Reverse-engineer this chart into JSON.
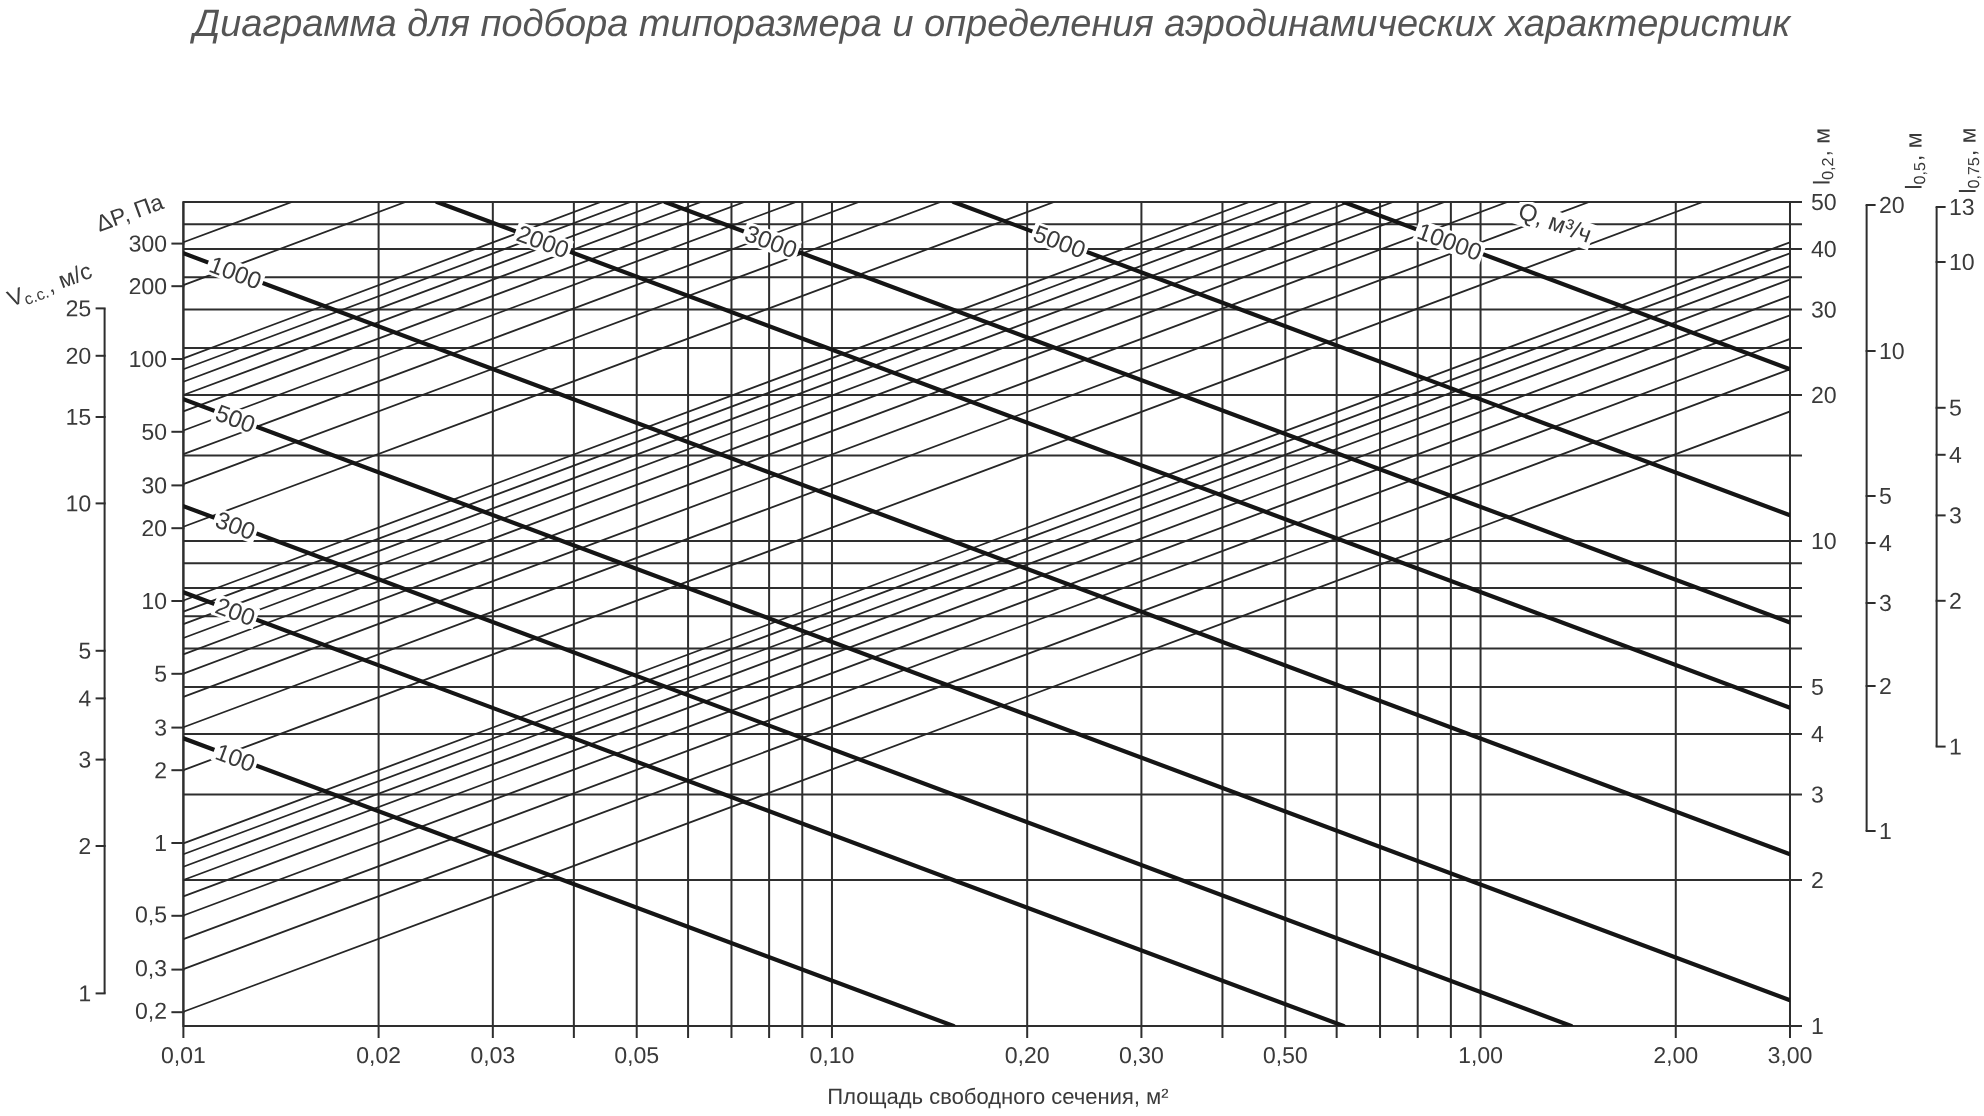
{
  "chart_data": {
    "type": "line",
    "title": "Диаграмма для подбора типоразмера и определения аэродинамических характеристик",
    "xlabel": "Площадь свободного сечения, м²",
    "ylabel": "l$_{0,2}$, м",
    "annotations": [
      {
        "text": "Q, м³/ч",
        "x": 1.3,
        "y": 45
      },
      "l$_{0,5}$, м",
      "20",
      "10",
      "5",
      "4",
      "3",
      "2",
      "1",
      "l$_{0,75}$, м",
      "13",
      "10",
      "5",
      "4",
      "3",
      "2",
      "1",
      "ΔP, Па",
      "300",
      "200",
      "100",
      "50",
      "30",
      "20",
      "10",
      "5",
      "3",
      "2",
      "1",
      "0,5",
      "0,3",
      "0,2",
      "V$_{с.с.}$, м/с",
      "25",
      "20",
      "15",
      "10",
      "5",
      "4",
      "3",
      "2",
      "1"
    ],
    "log": "xy",
    "grid": true,
    "xlim": [
      0.01,
      3
    ],
    "ylim": [
      1,
      50
    ],
    "xticks": [
      {
        "value": 0.01,
        "label": "0,01"
      },
      {
        "value": 0.02,
        "label": "0,02"
      },
      {
        "value": 0.03,
        "label": "0,03"
      },
      {
        "value": 0.04,
        "label": null
      },
      {
        "value": 0.05,
        "label": "0,05"
      },
      {
        "value": 0.06,
        "label": null
      },
      {
        "value": 0.07,
        "label": null
      },
      {
        "value": 0.08,
        "label": null
      },
      {
        "value": 0.09,
        "label": null
      },
      {
        "value": 0.1,
        "label": "0,10"
      },
      {
        "value": 0.2,
        "label": "0,20"
      },
      {
        "value": 0.3,
        "label": "0,30"
      },
      {
        "value": 0.4,
        "label": null
      },
      {
        "value": 0.5,
        "label": "0,50"
      },
      {
        "value": 0.6,
        "label": null
      },
      {
        "value": 0.7,
        "label": null
      },
      {
        "value": 0.8,
        "label": null
      },
      {
        "value": 0.9,
        "label": null
      },
      {
        "value": 1,
        "label": "1,00"
      },
      {
        "value": 2,
        "label": "2,00"
      },
      {
        "value": 3,
        "label": "3,00"
      }
    ],
    "yticks": [
      1,
      2,
      3,
      4,
      5,
      {
        "value": 6,
        "label": null
      },
      {
        "value": 7,
        "label": null
      },
      {
        "value": 8,
        "label": null
      },
      {
        "value": 9,
        "label": null
      },
      10,
      {
        "value": 15,
        "label": null
      },
      20,
      {
        "value": 25,
        "label": null
      },
      30,
      {
        "value": 35,
        "label": null
      },
      40,
      {
        "value": 45,
        "label": null
      },
      50
    ],
    "series": [
      {
        "color": "#262626",
        "x": [
          0.01,
          3
        ],
        "values": [
          1.07,
          18.5
        ]
      },
      {
        "color": "#262626",
        "x": [
          0.01,
          3
        ],
        "values": [
          1.31,
          22.6
        ]
      },
      {
        "color": "#262626",
        "x": [
          0.01,
          3
        ],
        "values": [
          1.51,
          26.1
        ]
      },
      {
        "color": "#262626",
        "x": [
          0.01,
          3
        ],
        "values": [
          1.69,
          29.2
        ]
      },
      {
        "color": "#262626",
        "x": [
          0.01,
          3
        ],
        "values": [
          1.85,
          32.0
        ]
      },
      {
        "color": "#262626",
        "x": [
          0.01,
          3
        ],
        "values": [
          2.0,
          34.6
        ]
      },
      {
        "color": "#262626",
        "x": [
          0.01,
          3
        ],
        "values": [
          2.13,
          36.9
        ]
      },
      {
        "color": "#262626",
        "x": [
          0.01,
          3
        ],
        "values": [
          2.26,
          39.2
        ]
      },
      {
        "color": "#262626",
        "x": [
          0.01,
          3
        ],
        "values": [
          2.38,
          41.3
        ]
      },
      {
        "color": "#262626",
        "x": [
          0.01,
          2.2
        ],
        "values": [
          3.37,
          50
        ]
      },
      {
        "color": "#262626",
        "x": [
          0.01,
          1.47
        ],
        "values": [
          4.13,
          50
        ]
      },
      {
        "color": "#262626",
        "x": [
          0.01,
          1.1
        ],
        "values": [
          4.77,
          50
        ]
      },
      {
        "color": "#262626",
        "x": [
          0.01,
          0.88
        ],
        "values": [
          5.33,
          50
        ]
      },
      {
        "color": "#262626",
        "x": [
          0.01,
          0.733
        ],
        "values": [
          5.84,
          50
        ]
      },
      {
        "color": "#262626",
        "x": [
          0.01,
          0.628
        ],
        "values": [
          6.31,
          50
        ]
      },
      {
        "color": "#262626",
        "x": [
          0.01,
          0.55
        ],
        "values": [
          6.74,
          50
        ]
      },
      {
        "color": "#262626",
        "x": [
          0.01,
          0.489
        ],
        "values": [
          7.15,
          50
        ]
      },
      {
        "color": "#262626",
        "x": [
          0.01,
          0.44
        ],
        "values": [
          7.54,
          50
        ]
      },
      {
        "color": "#262626",
        "x": [
          0.01,
          0.22
        ],
        "values": [
          10.7,
          50
        ]
      },
      {
        "color": "#262626",
        "x": [
          0.01,
          0.147
        ],
        "values": [
          13.1,
          50
        ]
      },
      {
        "color": "#262626",
        "x": [
          0.01,
          0.11
        ],
        "values": [
          15.1,
          50
        ]
      },
      {
        "color": "#262626",
        "x": [
          0.01,
          0.088
        ],
        "values": [
          16.9,
          50
        ]
      },
      {
        "color": "#262626",
        "x": [
          0.01,
          0.0733
        ],
        "values": [
          18.5,
          50
        ]
      },
      {
        "color": "#262626",
        "x": [
          0.01,
          0.0628
        ],
        "values": [
          20.0,
          50
        ]
      },
      {
        "color": "#262626",
        "x": [
          0.01,
          0.055
        ],
        "values": [
          21.3,
          50
        ]
      },
      {
        "color": "#262626",
        "x": [
          0.01,
          0.0489
        ],
        "values": [
          22.6,
          50
        ]
      },
      {
        "color": "#262626",
        "x": [
          0.01,
          0.044
        ],
        "values": [
          23.8,
          50
        ]
      },
      {
        "color": "#262626",
        "x": [
          0.01,
          0.022
        ],
        "values": [
          33.7,
          50
        ]
      },
      {
        "color": "#262626",
        "x": [
          0.01,
          0.0147
        ],
        "values": [
          41.3,
          50
        ]
      },
      {
        "name": "100",
        "color": "#151515",
        "x": [
          0.01,
          0.154
        ],
        "values": [
          3.92,
          1
        ]
      },
      {
        "name": "200",
        "color": "#151515",
        "x": [
          0.01,
          0.615
        ],
        "values": [
          7.84,
          1
        ]
      },
      {
        "name": "300",
        "color": "#151515",
        "x": [
          0.01,
          1.38
        ],
        "values": [
          11.8,
          1
        ]
      },
      {
        "name": "500",
        "color": "#151515",
        "x": [
          0.01,
          3
        ],
        "values": [
          19.6,
          1.13
        ]
      },
      {
        "name": "1000",
        "color": "#151515",
        "x": [
          0.01,
          3
        ],
        "values": [
          39.2,
          2.26
        ]
      },
      {
        "name": "2000",
        "color": "#151515",
        "x": [
          0.0246,
          3
        ],
        "values": [
          50,
          4.53
        ]
      },
      {
        "name": "3000",
        "color": "#151515",
        "x": [
          0.0553,
          3
        ],
        "values": [
          50,
          6.79
        ]
      },
      {
        "name": "5000",
        "color": "#151515",
        "x": [
          0.154,
          3
        ],
        "values": [
          50,
          11.3
        ]
      },
      {
        "name": "10000",
        "color": "#151515",
        "x": [
          0.615,
          3
        ],
        "values": [
          50,
          22.6
        ]
      }
    ]
  }
}
